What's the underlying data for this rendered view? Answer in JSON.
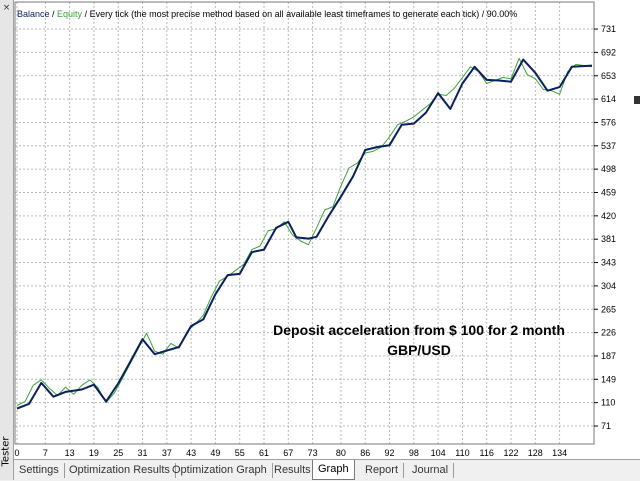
{
  "header": {
    "balance": "Balance",
    "sep1": " / ",
    "equity": "Equity",
    "sep2": " / ",
    "description": "Every tick (the most precise method based on all available least timeframes to generate each tick)",
    "sep3": " / ",
    "quality": "90.00%"
  },
  "annotation": {
    "line1": "Deposit  acceleration from $ 100 for 2 month",
    "line2": "GBP/USD"
  },
  "sidebar": {
    "label": "Tester",
    "close": "×"
  },
  "tabs": [
    {
      "label": "Settings",
      "active": false
    },
    {
      "label": "Optimization Results",
      "active": false
    },
    {
      "label": "Optimization Graph",
      "active": false
    },
    {
      "label": "Results",
      "active": false
    },
    {
      "label": "Graph",
      "active": true
    },
    {
      "label": "Report",
      "active": false
    },
    {
      "label": "Journal",
      "active": false
    }
  ],
  "colors": {
    "balance": "#0a1f5c",
    "equity": "#3ca33c",
    "grid": "#b8b8b8"
  },
  "chart_data": {
    "type": "line",
    "y_ticks": [
      731,
      692,
      653,
      614,
      576,
      537,
      498,
      459,
      420,
      381,
      343,
      304,
      265,
      226,
      187,
      149,
      110,
      71
    ],
    "x_ticks": [
      0,
      7,
      13,
      19,
      25,
      31,
      37,
      43,
      49,
      55,
      61,
      67,
      73,
      80,
      86,
      92,
      98,
      104,
      110,
      116,
      122,
      128,
      134
    ],
    "xlim": [
      0,
      142
    ],
    "ylim": [
      71,
      742
    ],
    "grid": true,
    "series": [
      {
        "name": "Balance",
        "color": "#0a1f5c",
        "points": [
          [
            0,
            100
          ],
          [
            3,
            108
          ],
          [
            6,
            143
          ],
          [
            9,
            120
          ],
          [
            12,
            128
          ],
          [
            16,
            132
          ],
          [
            19,
            140
          ],
          [
            22,
            112
          ],
          [
            25,
            142
          ],
          [
            28,
            178
          ],
          [
            31,
            215
          ],
          [
            34,
            190
          ],
          [
            37,
            196
          ],
          [
            40,
            202
          ],
          [
            43,
            237
          ],
          [
            46,
            248
          ],
          [
            49,
            290
          ],
          [
            52,
            322
          ],
          [
            55,
            324
          ],
          [
            58,
            360
          ],
          [
            61,
            364
          ],
          [
            64,
            400
          ],
          [
            67,
            410
          ],
          [
            69,
            384
          ],
          [
            72,
            382
          ],
          [
            74,
            385
          ],
          [
            77,
            420
          ],
          [
            80,
            452
          ],
          [
            83,
            486
          ],
          [
            86,
            530
          ],
          [
            89,
            535
          ],
          [
            92,
            538
          ],
          [
            95,
            572
          ],
          [
            98,
            574
          ],
          [
            101,
            592
          ],
          [
            104,
            624
          ],
          [
            107,
            598
          ],
          [
            110,
            640
          ],
          [
            113,
            668
          ],
          [
            116,
            646
          ],
          [
            119,
            645
          ],
          [
            122,
            643
          ],
          [
            125,
            680
          ],
          [
            128,
            658
          ],
          [
            131,
            628
          ],
          [
            134,
            634
          ],
          [
            137,
            668
          ],
          [
            142,
            670
          ]
        ]
      },
      {
        "name": "Equity",
        "color": "#3ca33c",
        "points": [
          [
            0,
            105
          ],
          [
            2,
            112
          ],
          [
            4,
            139
          ],
          [
            6,
            148
          ],
          [
            8,
            134
          ],
          [
            10,
            122
          ],
          [
            12,
            136
          ],
          [
            14,
            124
          ],
          [
            16,
            139
          ],
          [
            18,
            148
          ],
          [
            20,
            135
          ],
          [
            22,
            110
          ],
          [
            24,
            126
          ],
          [
            26,
            150
          ],
          [
            28,
            175
          ],
          [
            30,
            200
          ],
          [
            32,
            225
          ],
          [
            34,
            195
          ],
          [
            36,
            190
          ],
          [
            38,
            208
          ],
          [
            40,
            200
          ],
          [
            42,
            228
          ],
          [
            44,
            240
          ],
          [
            46,
            255
          ],
          [
            48,
            286
          ],
          [
            50,
            312
          ],
          [
            52,
            320
          ],
          [
            54,
            330
          ],
          [
            56,
            340
          ],
          [
            58,
            364
          ],
          [
            60,
            370
          ],
          [
            62,
            395
          ],
          [
            64,
            398
          ],
          [
            66,
            410
          ],
          [
            68,
            388
          ],
          [
            70,
            378
          ],
          [
            72,
            372
          ],
          [
            74,
            400
          ],
          [
            76,
            430
          ],
          [
            78,
            435
          ],
          [
            80,
            470
          ],
          [
            82,
            500
          ],
          [
            84,
            508
          ],
          [
            86,
            525
          ],
          [
            88,
            528
          ],
          [
            90,
            535
          ],
          [
            92,
            552
          ],
          [
            94,
            572
          ],
          [
            96,
            578
          ],
          [
            98,
            585
          ],
          [
            100,
            596
          ],
          [
            102,
            606
          ],
          [
            104,
            622
          ],
          [
            106,
            620
          ],
          [
            108,
            632
          ],
          [
            110,
            650
          ],
          [
            112,
            668
          ],
          [
            114,
            660
          ],
          [
            116,
            640
          ],
          [
            118,
            645
          ],
          [
            120,
            650
          ],
          [
            122,
            648
          ],
          [
            124,
            682
          ],
          [
            126,
            655
          ],
          [
            128,
            648
          ],
          [
            130,
            630
          ],
          [
            132,
            628
          ],
          [
            134,
            622
          ],
          [
            136,
            660
          ],
          [
            138,
            672
          ],
          [
            142,
            668
          ]
        ]
      }
    ]
  }
}
